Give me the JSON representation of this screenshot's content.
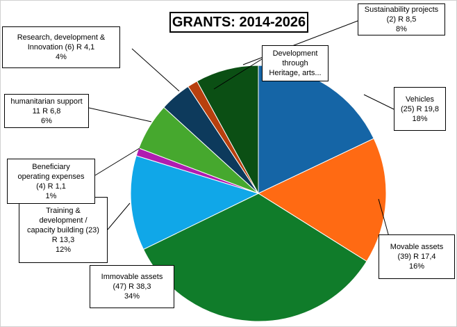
{
  "chart_data": {
    "type": "pie",
    "title": "GRANTS: 2014-2026",
    "slices": [
      {
        "lines": [
          "Vehicles",
          "(25) R 19,8",
          "18%"
        ],
        "value": 18,
        "color": "#1565a6"
      },
      {
        "lines": [
          "Movable assets",
          "(39) R 17,4",
          "16%"
        ],
        "value": 16,
        "color": "#ff6a13"
      },
      {
        "lines": [
          "Immovable assets",
          "(47) R 38,3",
          "34%"
        ],
        "value": 34,
        "color": "#107c2a"
      },
      {
        "lines": [
          "Training &",
          "development /",
          "capacity building (23)",
          "R 13,3",
          "12%"
        ],
        "value": 12,
        "color": "#10a7e8"
      },
      {
        "lines": [
          "Beneficiary",
          "operating expenses",
          "(4) R 1,1",
          "1%"
        ],
        "value": 1,
        "color": "#b01cb0"
      },
      {
        "lines": [
          "humanitarian support",
          "11 R 6,8",
          "6%"
        ],
        "value": 6,
        "color": "#46a82e"
      },
      {
        "lines": [
          "Research, development &",
          "Innovation (6) R 4,1",
          "4%"
        ],
        "value": 4,
        "color": "#0d3a5c"
      },
      {
        "lines": [
          "Development",
          "through",
          "Heritage, arts..."
        ],
        "value": 1.3,
        "color": "#b8400e"
      },
      {
        "lines": [
          "Sustainability projects",
          "(2) R 8,5",
          "8%"
        ],
        "value": 8,
        "color": "#0b4f14"
      }
    ]
  }
}
